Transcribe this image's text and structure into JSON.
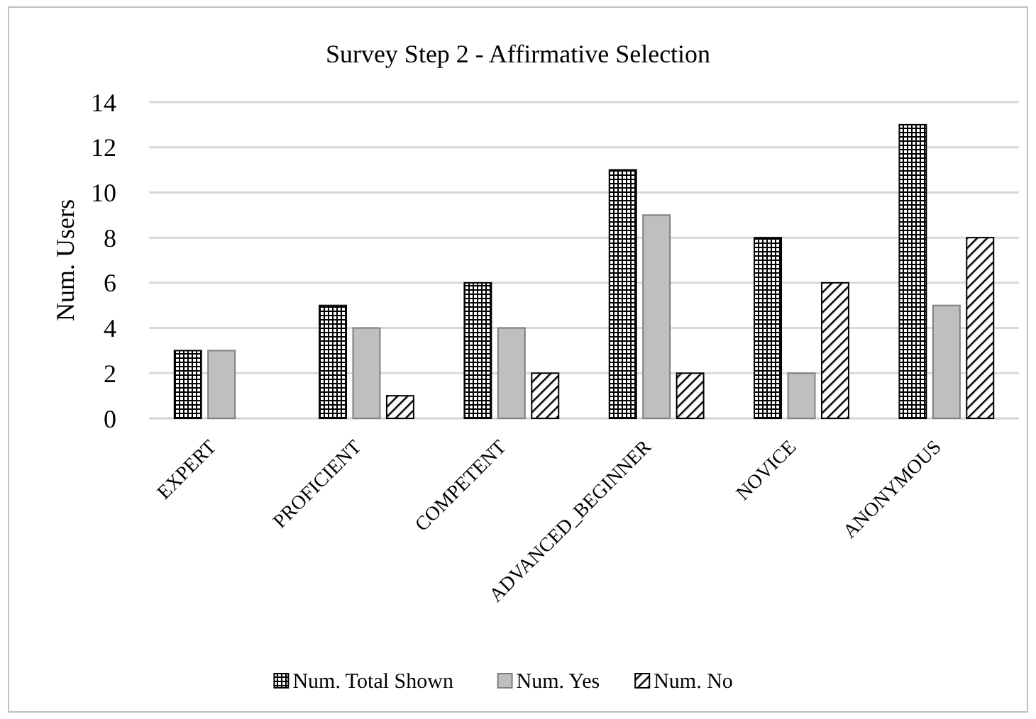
{
  "chart_data": {
    "type": "bar",
    "title": "Survey Step 2 - Affirmative Selection",
    "ylabel": "Num. Users",
    "categories": [
      "EXPERT",
      "PROFICIENT",
      "COMPETENT",
      "ADVANCED_BEGINNER",
      "NOVICE",
      "ANONYMOUS"
    ],
    "series": [
      {
        "name": "Num. Total Shown",
        "color": "#000000",
        "values": [
          3,
          5,
          6,
          11,
          8,
          13
        ]
      },
      {
        "name": "Num. Yes",
        "color": "#bfbfbf",
        "values": [
          3,
          4,
          4,
          9,
          2,
          5
        ]
      },
      {
        "name": "Num. No",
        "color": "#000000",
        "values": [
          0,
          1,
          2,
          2,
          6,
          8
        ]
      }
    ],
    "ylim": [
      0,
      14
    ],
    "yticks": [
      0,
      2,
      4,
      6,
      8,
      10,
      12,
      14
    ],
    "grid": "y",
    "legend": "bottom"
  }
}
